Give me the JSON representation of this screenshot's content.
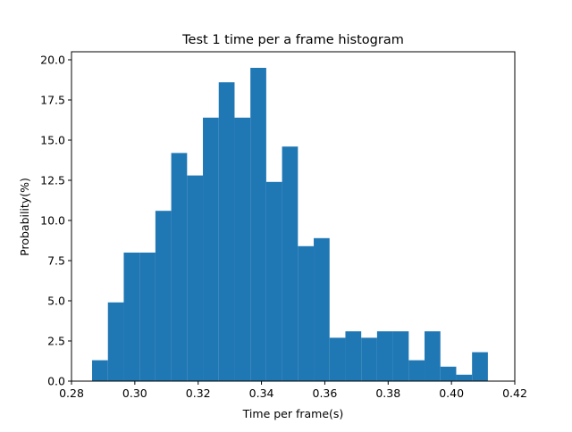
{
  "chart_data": {
    "type": "bar",
    "title": "Test 1 time per a frame histogram",
    "xlabel": "Time per frame(s)",
    "ylabel": "Probability(%)",
    "xlim": [
      0.28,
      0.42
    ],
    "ylim": [
      0,
      20.5
    ],
    "grid": false,
    "legend": "none",
    "bar_color": "#1f77b4",
    "x_ticks": [
      0.28,
      0.3,
      0.32,
      0.34,
      0.36,
      0.38,
      0.4,
      0.42
    ],
    "x_tick_labels": [
      "0.28",
      "0.30",
      "0.32",
      "0.34",
      "0.36",
      "0.38",
      "0.40",
      "0.42"
    ],
    "y_ticks": [
      0.0,
      2.5,
      5.0,
      7.5,
      10.0,
      12.5,
      15.0,
      17.5,
      20.0
    ],
    "y_tick_labels": [
      "0.0",
      "2.5",
      "5.0",
      "7.5",
      "10.0",
      "12.5",
      "15.0",
      "17.5",
      "20.0"
    ],
    "bin_edges": [
      0.2865,
      0.2915,
      0.2965,
      0.3015,
      0.3065,
      0.3115,
      0.3165,
      0.3215,
      0.3265,
      0.3315,
      0.3365,
      0.3415,
      0.3465,
      0.3515,
      0.3565,
      0.3615,
      0.3665,
      0.3715,
      0.3765,
      0.3815,
      0.3865,
      0.3915,
      0.3965,
      0.4015,
      0.4065,
      0.4115
    ],
    "values": [
      1.3,
      4.9,
      8.0,
      8.0,
      10.6,
      14.2,
      12.8,
      16.4,
      18.6,
      16.4,
      19.5,
      12.4,
      14.6,
      8.4,
      8.9,
      2.7,
      3.1,
      2.7,
      3.1,
      3.1,
      1.3,
      3.1,
      0.9,
      0.4,
      1.8
    ]
  }
}
